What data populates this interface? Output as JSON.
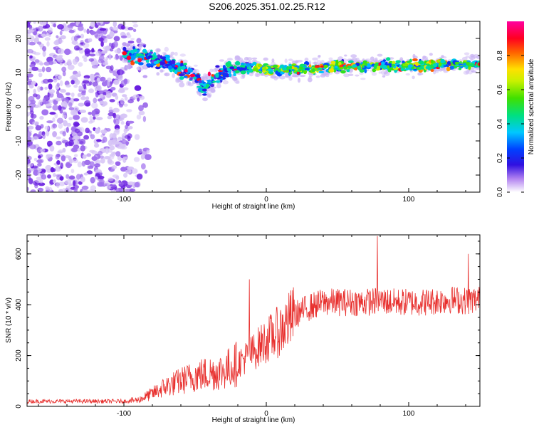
{
  "title": "S206.2025.351.02.25.R12",
  "chart_data": [
    {
      "type": "heatmap",
      "xlabel": "Height of straight line (km)",
      "ylabel": "Frequency (Hz)",
      "xlim": [
        -168,
        150
      ],
      "ylim": [
        -25,
        25
      ],
      "xticks": [
        -100,
        0,
        100
      ],
      "yticks": [
        -20,
        -10,
        0,
        10,
        20
      ],
      "ridge": {
        "description_units": "frequency (Hz) of spectral peak vs height (km)",
        "x": [
          -100,
          -90,
          -80,
          -70,
          -60,
          -50,
          -45,
          -40,
          -35,
          -30,
          -20,
          -10,
          0,
          10,
          20,
          30,
          40,
          50,
          60,
          70,
          80,
          90,
          100,
          110,
          120,
          130,
          140,
          150
        ],
        "y": [
          15,
          15,
          14,
          13,
          11,
          9,
          6,
          7,
          9,
          10,
          11,
          11.5,
          11,
          11,
          11,
          11,
          11.5,
          12,
          12,
          12,
          12,
          12,
          12,
          12,
          12.5,
          12.5,
          12.5,
          12.5
        ]
      },
      "noise_region_x_max": -95,
      "colorbar": {
        "label": "Normalized spectral amplitude",
        "range": [
          0,
          1
        ],
        "ticks": [
          0.0,
          0.2,
          0.4,
          0.6,
          0.8
        ]
      }
    },
    {
      "type": "line",
      "xlabel": "Height of straight line (km)",
      "ylabel": "SNR (10 * v/v)",
      "xlim": [
        -168,
        150
      ],
      "ylim": [
        0,
        675
      ],
      "xticks": [
        -100,
        0,
        100
      ],
      "yticks": [
        0,
        200,
        400,
        600
      ],
      "color": "#e8302e",
      "trend": {
        "x": [
          -168,
          -100,
          -90,
          -80,
          -70,
          -60,
          -50,
          -40,
          -30,
          -20,
          -10,
          0,
          10,
          20,
          30,
          40,
          50,
          60,
          70,
          80,
          90,
          100,
          110,
          120,
          130,
          140,
          150
        ],
        "y": [
          20,
          20,
          25,
          50,
          80,
          100,
          120,
          130,
          140,
          170,
          210,
          260,
          300,
          360,
          390,
          410,
          410,
          410,
          410,
          415,
          410,
          410,
          410,
          415,
          420,
          415,
          420
        ]
      },
      "peaks": [
        {
          "x": 78,
          "y": 670
        },
        {
          "x": -12,
          "y": 500
        },
        {
          "x": 142,
          "y": 600
        }
      ]
    }
  ]
}
